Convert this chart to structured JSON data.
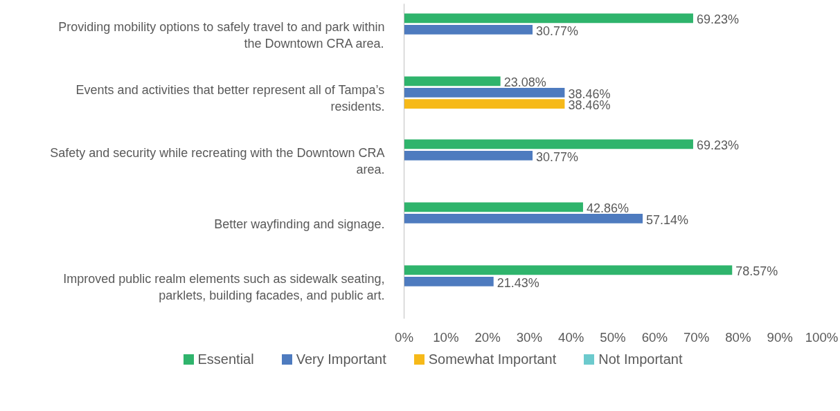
{
  "chart_data": {
    "type": "bar",
    "orientation": "horizontal",
    "categories": [
      "Providing mobility options to safely travel to and park within\nthe Downtown CRA area.",
      "Events and activities that better represent all of Tampa’s\nresidents.",
      "Safety and security while recreating with the Downtown CRA\narea.",
      "Better wayfinding and signage.",
      "Improved public realm elements such as sidewalk seating,\nparklets, building facades, and public art."
    ],
    "series": [
      {
        "name": "Essential",
        "color": "#2fb46c",
        "values": [
          69.23,
          23.08,
          69.23,
          42.86,
          78.57
        ],
        "value_labels": [
          "69.23%",
          "23.08%",
          "69.23%",
          "42.86%",
          "78.57%"
        ]
      },
      {
        "name": "Very Important",
        "color": "#4e7bbf",
        "values": [
          30.77,
          38.46,
          30.77,
          57.14,
          21.43
        ],
        "value_labels": [
          "30.77%",
          "38.46%",
          "30.77%",
          "57.14%",
          "21.43%"
        ]
      },
      {
        "name": "Somewhat Important",
        "color": "#f6b919",
        "values": [
          null,
          38.46,
          null,
          null,
          null
        ],
        "value_labels": [
          null,
          "38.46%",
          null,
          null,
          null
        ]
      },
      {
        "name": "Not Important",
        "color": "#6ccacd",
        "values": [
          null,
          null,
          null,
          null,
          null
        ],
        "value_labels": [
          null,
          null,
          null,
          null,
          null
        ]
      }
    ],
    "xlim": [
      0,
      100
    ],
    "xticks": [
      {
        "value": 0,
        "label": "0%"
      },
      {
        "value": 10,
        "label": "10%"
      },
      {
        "value": 20,
        "label": "20%"
      },
      {
        "value": 30,
        "label": "30%"
      },
      {
        "value": 40,
        "label": "40%"
      },
      {
        "value": 50,
        "label": "50%"
      },
      {
        "value": 60,
        "label": "60%"
      },
      {
        "value": 70,
        "label": "70%"
      },
      {
        "value": 80,
        "label": "80%"
      },
      {
        "value": 90,
        "label": "90%"
      },
      {
        "value": 100,
        "label": "100%"
      }
    ],
    "grid": false,
    "legend": "bottom"
  }
}
